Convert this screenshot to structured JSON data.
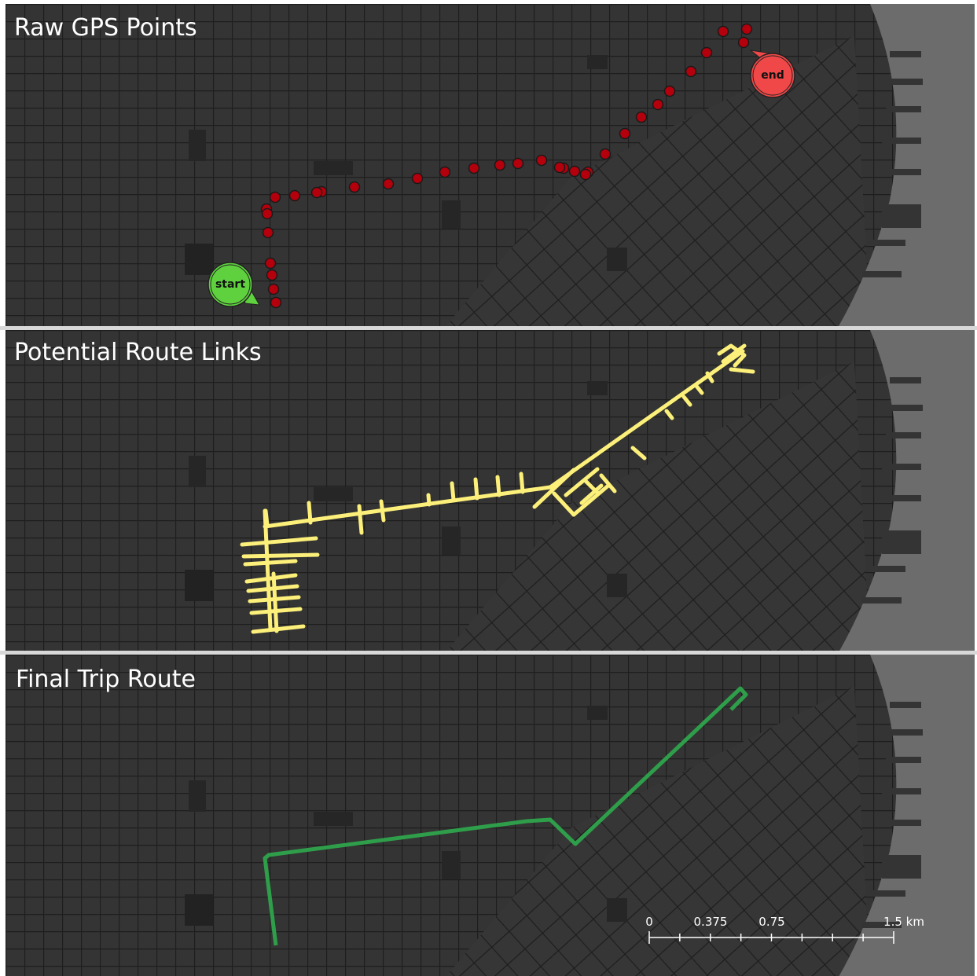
{
  "panels": [
    "Raw GPS Points",
    "Potential Route Links",
    "Final Trip Route"
  ],
  "markers": {
    "start": "start",
    "end": "end"
  },
  "scale_bar": [
    "0",
    "0.375",
    "0.75",
    "1.5 km"
  ]
}
